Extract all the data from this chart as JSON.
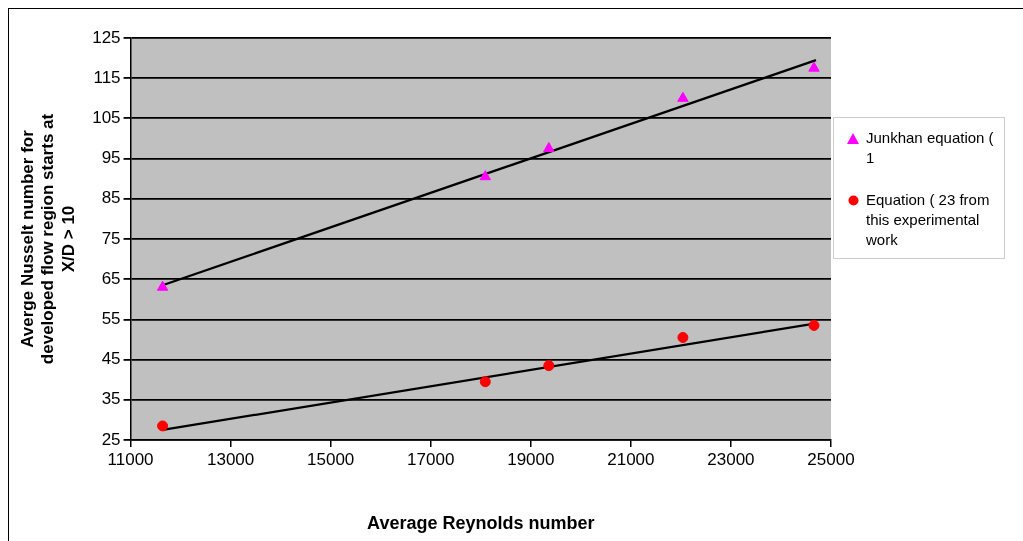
{
  "chart_data": {
    "type": "scatter",
    "xlabel": "Average Reynolds number",
    "ylabel": "Averge Nusselt number for\ndeveloped flow region starts at\nX/D > 10",
    "xlim": [
      11000,
      25000
    ],
    "xticks": [
      11000,
      13000,
      15000,
      17000,
      19000,
      21000,
      23000,
      25000
    ],
    "ylim": [
      25,
      125
    ],
    "yticks": [
      25,
      35,
      45,
      55,
      65,
      75,
      85,
      95,
      105,
      115,
      125
    ],
    "grid": "y",
    "legend": "right",
    "series": [
      {
        "name": "Junkhan equation ( 1",
        "marker": "triangle",
        "color": "#ff00ff",
        "x": [
          11640,
          18090,
          19360,
          22040,
          24660
        ],
        "values": [
          63,
          90.5,
          97.5,
          110,
          117.5
        ]
      },
      {
        "name": "Equation ( 23 from this experimental work",
        "marker": "circle",
        "color": "#ff0000",
        "x": [
          11640,
          18090,
          19360,
          22040,
          24660
        ],
        "values": [
          28.5,
          39.5,
          43.5,
          50.5,
          53.5
        ]
      },
      {
        "type": "line",
        "marker": "none",
        "line_style": "solid",
        "color": "#000000",
        "x": [
          11640,
          24700
        ],
        "values": [
          63.5,
          119.5
        ]
      },
      {
        "type": "line",
        "marker": "none",
        "line_style": "solid",
        "color": "#000000",
        "x": [
          11640,
          24700
        ],
        "values": [
          27.5,
          54
        ]
      }
    ]
  }
}
